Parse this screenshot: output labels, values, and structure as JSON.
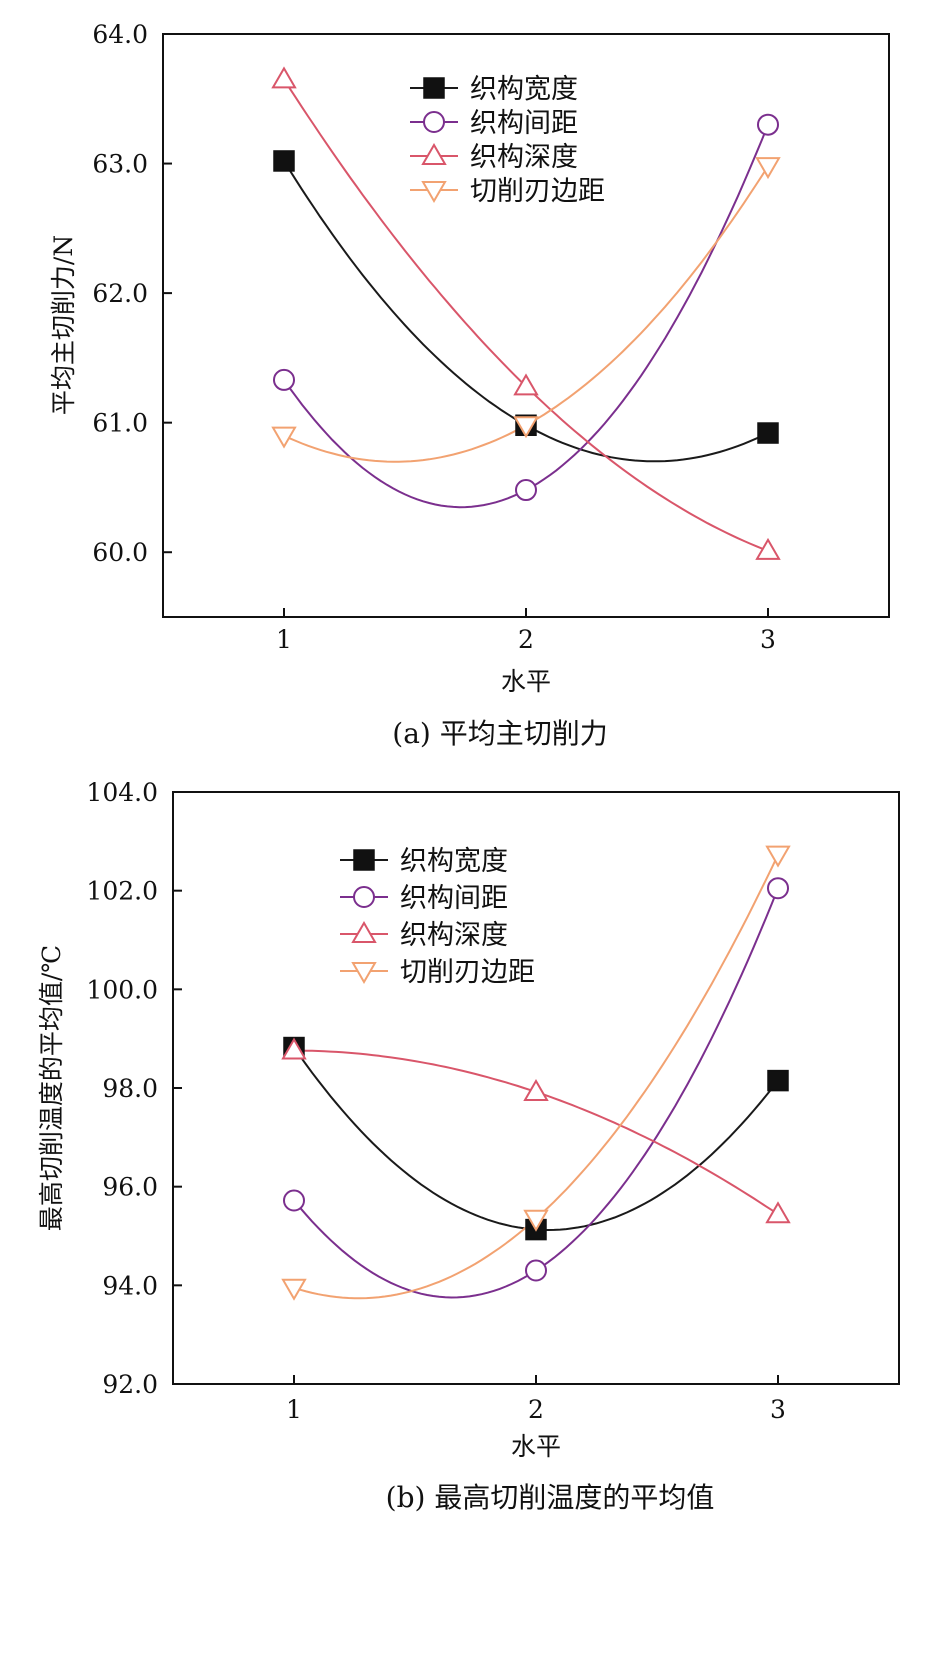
{
  "chart_data": [
    {
      "id": "a",
      "type": "line",
      "caption": "(a) 平均主切削力",
      "xlabel": "水平",
      "ylabel": "平均主切削力/N",
      "x": [
        1,
        2,
        3
      ],
      "xlim": [
        0.5,
        3.5
      ],
      "ylim": [
        59.5,
        64.0
      ],
      "yticks": [
        60.0,
        61.0,
        62.0,
        63.0,
        64.0
      ],
      "ytick_labels": [
        "60.0",
        "61.0",
        "62.0",
        "63.0",
        "64.0"
      ],
      "xticks": [
        1,
        2,
        3
      ],
      "xtick_labels": [
        "1",
        "2",
        "3"
      ],
      "legend_position": "top-center",
      "series": [
        {
          "name": "织构宽度",
          "values": [
            63.02,
            60.98,
            60.92
          ],
          "color": "#1a1a1a",
          "marker": "square-filled"
        },
        {
          "name": "织构间距",
          "values": [
            61.33,
            60.48,
            63.3
          ],
          "color": "#7b2f8e",
          "marker": "circle-open"
        },
        {
          "name": "织构深度",
          "values": [
            63.65,
            61.28,
            60.01
          ],
          "color": "#d9566a",
          "marker": "triangle-up-open"
        },
        {
          "name": "切削刃边距",
          "values": [
            60.9,
            60.98,
            62.98
          ],
          "color": "#f2a271",
          "marker": "triangle-down-open"
        }
      ]
    },
    {
      "id": "b",
      "type": "line",
      "caption": "(b) 最高切削温度的平均值",
      "xlabel": "水平",
      "ylabel": "最高切削温度的平均值/℃",
      "x": [
        1,
        2,
        3
      ],
      "xlim": [
        0.5,
        3.5
      ],
      "ylim": [
        92.0,
        104.0
      ],
      "yticks": [
        92.0,
        94.0,
        96.0,
        98.0,
        100.0,
        102.0,
        104.0
      ],
      "ytick_labels": [
        "92.0",
        "94.0",
        "96.0",
        "98.0",
        "100.0",
        "102.0",
        "104.0"
      ],
      "xticks": [
        1,
        2,
        3
      ],
      "xtick_labels": [
        "1",
        "2",
        "3"
      ],
      "legend_position": "top-center",
      "series": [
        {
          "name": "织构宽度",
          "values": [
            98.82,
            95.13,
            98.15
          ],
          "color": "#1a1a1a",
          "marker": "square-filled"
        },
        {
          "name": "织构间距",
          "values": [
            95.72,
            94.3,
            102.05
          ],
          "color": "#7b2f8e",
          "marker": "circle-open"
        },
        {
          "name": "织构深度",
          "values": [
            98.76,
            97.92,
            95.44
          ],
          "color": "#d9566a",
          "marker": "triangle-up-open"
        },
        {
          "name": "切削刃边距",
          "values": [
            93.95,
            95.35,
            102.73
          ],
          "color": "#f2a271",
          "marker": "triangle-down-open"
        }
      ]
    }
  ]
}
